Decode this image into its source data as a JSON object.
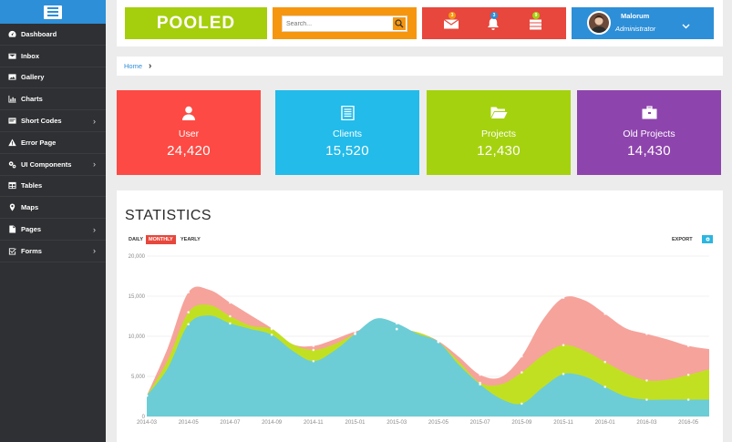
{
  "sidebar": {
    "items": [
      {
        "label": "Dashboard",
        "icon": "dashboard-icon",
        "has_submenu": false
      },
      {
        "label": "Inbox",
        "icon": "inbox-icon",
        "has_submenu": false
      },
      {
        "label": "Gallery",
        "icon": "gallery-icon",
        "has_submenu": false
      },
      {
        "label": "Charts",
        "icon": "bar-chart-icon",
        "has_submenu": false
      },
      {
        "label": "Short Codes",
        "icon": "short-codes-icon",
        "has_submenu": true
      },
      {
        "label": "Error Page",
        "icon": "warning-icon",
        "has_submenu": false
      },
      {
        "label": "UI Components",
        "icon": "cogs-icon",
        "has_submenu": true
      },
      {
        "label": "Tables",
        "icon": "table-icon",
        "has_submenu": false
      },
      {
        "label": "Maps",
        "icon": "map-marker-icon",
        "has_submenu": false
      },
      {
        "label": "Pages",
        "icon": "pages-icon",
        "has_submenu": true
      },
      {
        "label": "Forms",
        "icon": "checkbox-icon",
        "has_submenu": true
      }
    ]
  },
  "header": {
    "logo": "POOLED",
    "search_placeholder": "Search...",
    "notifications": [
      {
        "icon": "envelope-icon",
        "count": "3",
        "badge_color": "#f6960e"
      },
      {
        "icon": "bell-icon",
        "count": "3",
        "badge_color": "#2d8fd8"
      },
      {
        "icon": "tasks-icon",
        "count": "9",
        "badge_color": "#a5cf0c"
      }
    ],
    "user": {
      "name": "Malorum",
      "role": "Administrator"
    }
  },
  "breadcrumb": {
    "home": "Home"
  },
  "cards": [
    {
      "label": "User",
      "value": "24,420",
      "color": "#fd4a44",
      "icon": "user-icon"
    },
    {
      "label": "Clients",
      "value": "15,520",
      "color": "#22bbea",
      "icon": "list-icon"
    },
    {
      "label": "Projects",
      "value": "12,430",
      "color": "#a5d20e",
      "icon": "folder-open-icon"
    },
    {
      "label": "Old Projects",
      "value": "14,430",
      "color": "#8e44ad",
      "icon": "briefcase-icon"
    }
  ],
  "statistics": {
    "title": "STATISTICS",
    "ranges": [
      "DAILY",
      "MONTHLY",
      "YEARLY"
    ],
    "active_range": "MONTHLY",
    "export_label": "EXPORT",
    "colors": {
      "series1": "#f6a39c",
      "series2": "#c2e022",
      "series3": "#6ccdd6"
    }
  },
  "chart_data": {
    "type": "area",
    "x": [
      "2014-03",
      "2014-04",
      "2014-05",
      "2014-06",
      "2014-07",
      "2014-08",
      "2014-09",
      "2014-10",
      "2014-11",
      "2014-12",
      "2015-01",
      "2015-02",
      "2015-03",
      "2015-04",
      "2015-05",
      "2015-06",
      "2015-07",
      "2015-08",
      "2015-09",
      "2015-10",
      "2015-11",
      "2015-12",
      "2016-01",
      "2016-02",
      "2016-03",
      "2016-04",
      "2016-05",
      "2016-06"
    ],
    "x_tick_labels": [
      "2014-03",
      "2014-05",
      "2014-07",
      "2014-09",
      "2014-11",
      "2015-01",
      "2015-03",
      "2015-05",
      "2015-07",
      "2015-09",
      "2015-11",
      "2016-01",
      "2016-03",
      "2016-05"
    ],
    "series": [
      {
        "values": [
          2600,
          8500,
          15500,
          15800,
          14200,
          12600,
          11000,
          9000,
          8800,
          9600,
          10600,
          11200,
          10900,
          10500,
          9400,
          7400,
          5200,
          4900,
          7500,
          12000,
          14800,
          14500,
          12800,
          11000,
          10300,
          9600,
          8800,
          8400
        ],
        "color": "#f6a39c"
      },
      {
        "values": [
          2600,
          7000,
          13000,
          13900,
          12500,
          11300,
          10900,
          9000,
          8300,
          9000,
          10300,
          11200,
          10900,
          10500,
          9300,
          6800,
          4200,
          4000,
          5500,
          7600,
          8900,
          8200,
          6800,
          5400,
          4500,
          4600,
          5200,
          5900
        ],
        "color": "#c2e022"
      },
      {
        "values": [
          2600,
          6000,
          11500,
          12600,
          11600,
          10900,
          10200,
          8200,
          6900,
          8200,
          10300,
          12200,
          11600,
          10300,
          9300,
          6400,
          4000,
          2200,
          1600,
          3600,
          5300,
          5000,
          3700,
          2500,
          2100,
          2100,
          2100,
          2100
        ],
        "color": "#6ccdd6"
      }
    ],
    "ylim": [
      0,
      20000
    ],
    "y_ticks": [
      "0",
      "5,000",
      "10,000",
      "15,000",
      "20,000"
    ],
    "grid": true
  }
}
